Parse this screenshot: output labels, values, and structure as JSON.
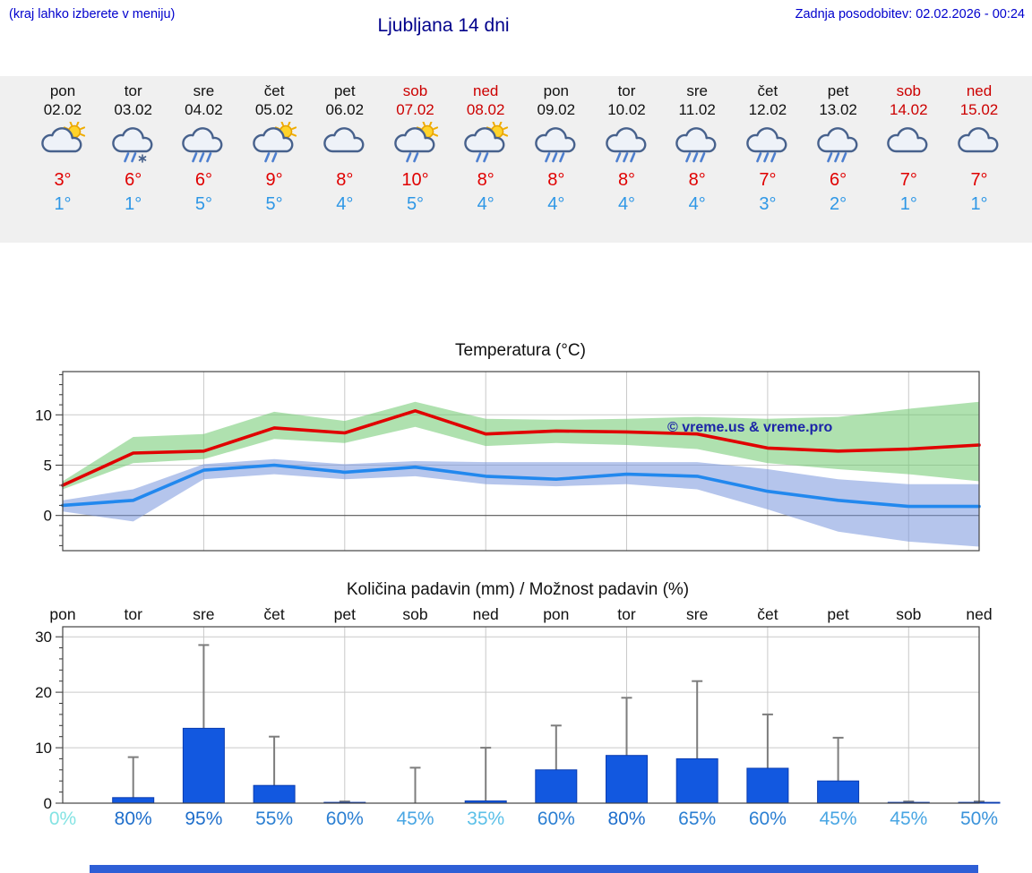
{
  "header": {
    "menu_hint": "(kraj lahko izberete v meniju)",
    "title": "Ljubljana 14 dni",
    "last_update": "Zadnja posodobitev: 02.02.2026 - 00:24"
  },
  "colors": {
    "weekday": "#111111",
    "weekend": "#cc0000",
    "high": "#e00000",
    "low": "#2e97e6"
  },
  "days": [
    {
      "name": "pon",
      "date": "02.02",
      "weekend": false,
      "icon": "partly-sunny",
      "high": "3°",
      "low": "1°"
    },
    {
      "name": "tor",
      "date": "03.02",
      "weekend": false,
      "icon": "sleet",
      "high": "6°",
      "low": "1°"
    },
    {
      "name": "sre",
      "date": "04.02",
      "weekend": false,
      "icon": "rain",
      "high": "6°",
      "low": "5°"
    },
    {
      "name": "čet",
      "date": "05.02",
      "weekend": false,
      "icon": "sun-rain",
      "high": "9°",
      "low": "5°"
    },
    {
      "name": "pet",
      "date": "06.02",
      "weekend": false,
      "icon": "cloudy",
      "high": "8°",
      "low": "4°"
    },
    {
      "name": "sob",
      "date": "07.02",
      "weekend": true,
      "icon": "sun-rain",
      "high": "10°",
      "low": "5°"
    },
    {
      "name": "ned",
      "date": "08.02",
      "weekend": true,
      "icon": "sun-rain",
      "high": "8°",
      "low": "4°"
    },
    {
      "name": "pon",
      "date": "09.02",
      "weekend": false,
      "icon": "rain",
      "high": "8°",
      "low": "4°"
    },
    {
      "name": "tor",
      "date": "10.02",
      "weekend": false,
      "icon": "rain",
      "high": "8°",
      "low": "4°"
    },
    {
      "name": "sre",
      "date": "11.02",
      "weekend": false,
      "icon": "rain",
      "high": "8°",
      "low": "4°"
    },
    {
      "name": "čet",
      "date": "12.02",
      "weekend": false,
      "icon": "rain",
      "high": "7°",
      "low": "3°"
    },
    {
      "name": "pet",
      "date": "13.02",
      "weekend": false,
      "icon": "rain",
      "high": "6°",
      "low": "2°"
    },
    {
      "name": "sob",
      "date": "14.02",
      "weekend": true,
      "icon": "cloudy",
      "high": "7°",
      "low": "1°"
    },
    {
      "name": "ned",
      "date": "15.02",
      "weekend": true,
      "icon": "cloudy",
      "high": "7°",
      "low": "1°"
    }
  ],
  "chart_data": [
    {
      "type": "line",
      "title": "Temperatura (°C)",
      "x_labels": [
        "pon",
        "tor",
        "sre",
        "čet",
        "pet",
        "sob",
        "ned",
        "pon",
        "tor",
        "sre",
        "čet",
        "pet",
        "sob",
        "ned"
      ],
      "ylim": [
        -3.5,
        14.3
      ],
      "yticks": [
        0,
        5,
        10
      ],
      "grid": true,
      "watermark": "© vreme.us & vreme.pro",
      "watermark_color": "#1c24a8",
      "series": [
        {
          "name": "max-temp",
          "color": "#e00000",
          "values": [
            3,
            6.2,
            6.4,
            8.7,
            8.2,
            10.4,
            8.1,
            8.4,
            8.3,
            8.1,
            6.7,
            6.4,
            6.6,
            7
          ]
        },
        {
          "name": "min-temp",
          "color": "#2288ee",
          "values": [
            1,
            1.5,
            4.5,
            5,
            4.3,
            4.8,
            3.9,
            3.6,
            4.1,
            3.9,
            2.4,
            1.5,
            0.9,
            0.9
          ]
        }
      ],
      "bands": [
        {
          "name": "max-temp-range",
          "color": "rgba(110,200,110,0.55)",
          "upper": [
            3.4,
            7.8,
            8.1,
            10.3,
            9.4,
            11.3,
            9.6,
            9.5,
            9.6,
            9.8,
            9.6,
            9.8,
            10.6,
            11.3
          ],
          "lower": [
            2.6,
            5.2,
            5.6,
            7.6,
            7.2,
            8.8,
            6.9,
            7.2,
            7,
            6.6,
            5.2,
            4.6,
            4.1,
            3.4
          ]
        },
        {
          "name": "min-temp-range",
          "color": "rgba(120,150,220,0.55)",
          "upper": [
            1.5,
            2.6,
            5.1,
            5.6,
            5.1,
            5.4,
            5.3,
            5.3,
            5.3,
            5.3,
            4.6,
            3.6,
            3.1,
            3.1
          ],
          "lower": [
            0.4,
            -0.6,
            3.6,
            4.1,
            3.6,
            3.9,
            3.1,
            2.9,
            3.1,
            2.6,
            0.6,
            -1.6,
            -2.6,
            -3.1
          ]
        }
      ]
    },
    {
      "type": "bar",
      "title": "Količina padavin (mm) / Možnost padavin (%)",
      "x_labels": [
        "pon",
        "tor",
        "sre",
        "čet",
        "pet",
        "sob",
        "ned",
        "pon",
        "tor",
        "sre",
        "čet",
        "pet",
        "sob",
        "ned"
      ],
      "ylim": [
        0,
        31.8
      ],
      "yticks": [
        0,
        10,
        20,
        30
      ],
      "grid": true,
      "bar_color": "#1258e0",
      "bar_edge_color": "#0a3cb0",
      "whisker_color": "#7d7d7d",
      "values": [
        0,
        1,
        13.5,
        3.2,
        0.15,
        0,
        0.4,
        6,
        8.6,
        8,
        6.3,
        4,
        0.15,
        0.15
      ],
      "whisker_max": [
        0,
        8.3,
        28.5,
        12,
        0.3,
        6.4,
        10,
        14,
        19,
        22,
        16,
        11.8,
        0.3,
        0.3
      ],
      "probabilities": [
        {
          "label": "0%",
          "color": "#84e3e3"
        },
        {
          "label": "80%",
          "color": "#1e6ecb"
        },
        {
          "label": "95%",
          "color": "#1e6ecb"
        },
        {
          "label": "55%",
          "color": "#2b7fd2"
        },
        {
          "label": "60%",
          "color": "#2b7fd2"
        },
        {
          "label": "45%",
          "color": "#49a6e3"
        },
        {
          "label": "35%",
          "color": "#5cc0e8"
        },
        {
          "label": "60%",
          "color": "#2b7fd2"
        },
        {
          "label": "80%",
          "color": "#1e6ecb"
        },
        {
          "label": "65%",
          "color": "#2b7fd2"
        },
        {
          "label": "60%",
          "color": "#2b7fd2"
        },
        {
          "label": "45%",
          "color": "#49a6e3"
        },
        {
          "label": "45%",
          "color": "#49a6e3"
        },
        {
          "label": "50%",
          "color": "#3a93da"
        }
      ]
    }
  ]
}
